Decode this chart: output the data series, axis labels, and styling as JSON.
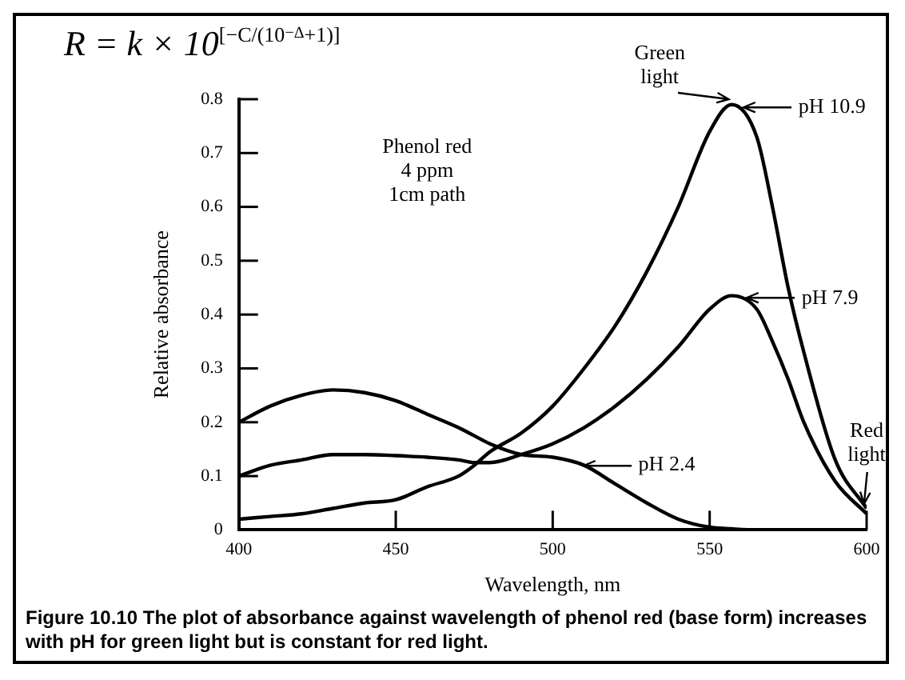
{
  "chart_data": {
    "type": "line",
    "title": "R = k × 10$^{[−C/(10}$$^{−Δ}$$^{+1)]}$",
    "xlabel": "Wavelength, nm",
    "ylabel": "Relative absorbance",
    "x": [
      400,
      410,
      420,
      430,
      440,
      450,
      460,
      470,
      475,
      480,
      490,
      500,
      510,
      520,
      530,
      540,
      550,
      557,
      565,
      570,
      575,
      580,
      590,
      600
    ],
    "series": [
      {
        "color": "#000000",
        "values": [
          0.2,
          0.23,
          0.25,
          0.26,
          0.255,
          0.24,
          0.215,
          0.19,
          0.175,
          0.16,
          0.14,
          0.135,
          0.12,
          0.085,
          0.05,
          0.02,
          0.005,
          0.002,
          0,
          0,
          0,
          0,
          0,
          0
        ]
      },
      {
        "color": "#000000",
        "values": [
          0.1,
          0.12,
          0.13,
          0.14,
          0.14,
          0.138,
          0.135,
          0.13,
          0.125,
          0.125,
          0.14,
          0.16,
          0.19,
          0.23,
          0.28,
          0.34,
          0.41,
          0.435,
          0.41,
          0.35,
          0.28,
          0.2,
          0.09,
          0.03
        ]
      },
      {
        "color": "#000000",
        "values": [
          0.02,
          0.025,
          0.03,
          0.04,
          0.05,
          0.056,
          0.08,
          0.1,
          0.12,
          0.145,
          0.18,
          0.23,
          0.3,
          0.38,
          0.48,
          0.6,
          0.74,
          0.79,
          0.73,
          0.6,
          0.45,
          0.33,
          0.13,
          0.04
        ]
      }
    ],
    "xlim": [
      400,
      600
    ],
    "xticks": [
      400,
      450,
      500,
      550,
      600
    ],
    "ylim": [
      0,
      0.8
    ],
    "yticks": [
      0,
      0.1,
      0.2,
      0.3,
      0.4,
      0.5,
      0.6,
      0.7,
      0.8
    ],
    "grid": false,
    "legend": false,
    "marker": "none",
    "line_style": "solid",
    "annotations": [
      "Phenol red\n4 ppm\n1cm path",
      {
        "text": "Green\nlight",
        "x": 557,
        "y": 0.79
      },
      {
        "text": "Red\nlight",
        "x": 600,
        "y": 0.04
      },
      {
        "text": "pH 10.9",
        "x": 561,
        "y": 0.785
      },
      {
        "text": "pH 7.9",
        "x": 562,
        "y": 0.43
      },
      {
        "text": "pH 2.4",
        "x": 510,
        "y": 0.12
      },
      "Figure 10.10    The plot of absorbance against wavelength of phenol red (base form) increases with pH for green light but is constant for red light."
    ]
  }
}
